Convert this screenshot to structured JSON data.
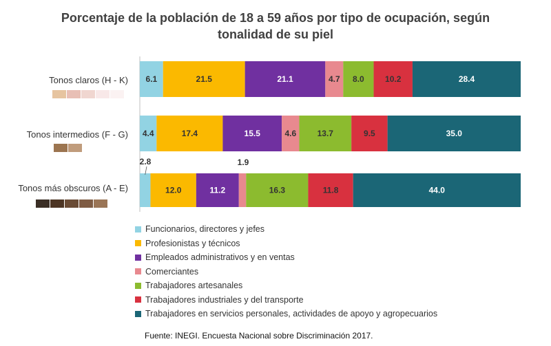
{
  "chart_data": {
    "type": "bar",
    "orientation": "horizontal",
    "stacked": true,
    "title": "Porcentaje de la población de 18 a 59 años por tipo de ocupación, según tonalidad de su piel",
    "title_lines": [
      "Porcentaje de la población de 18 a 59 años por tipo de ocupación, según",
      "tonalidad de su piel"
    ],
    "categories": [
      "Tonos claros (H - K)",
      "Tonos intermedios (F - G)",
      "Tonos más obscuros (A - E)"
    ],
    "series": [
      {
        "name": "Funcionarios, directores y jefes",
        "color": "#92d3e3",
        "values": [
          6.1,
          4.4,
          2.8
        ],
        "labels": [
          "6.1",
          "4.4",
          "2.8"
        ]
      },
      {
        "name": "Profesionistas y técnicos",
        "color": "#fbb900",
        "values": [
          21.5,
          17.4,
          12.0
        ],
        "labels": [
          "21.5",
          "17.4",
          "12.0"
        ]
      },
      {
        "name": "Empleados administrativos y en ventas",
        "color": "#7030a0",
        "values": [
          21.1,
          15.5,
          11.2
        ],
        "labels": [
          "21.1",
          "15.5",
          "11.2"
        ]
      },
      {
        "name": "Comerciantes",
        "color": "#e8898f",
        "values": [
          4.7,
          4.6,
          1.9
        ],
        "labels": [
          "4.7",
          "4.6",
          "1.9"
        ]
      },
      {
        "name": "Trabajadores artesanales",
        "color": "#8cbb2f",
        "values": [
          8.0,
          13.7,
          16.3
        ],
        "labels": [
          "8.0",
          "13.7",
          "16.3"
        ]
      },
      {
        "name": "Trabajadores industriales y del transporte",
        "color": "#d8313f",
        "values": [
          10.2,
          9.5,
          11.8
        ],
        "labels": [
          "10.2",
          "9.5",
          "11.8"
        ]
      },
      {
        "name": "Trabajadores en servicios personales, actividades de apoyo y agropecuarios",
        "color": "#1b6676",
        "values": [
          28.4,
          35.0,
          44.0
        ],
        "labels": [
          "28.4",
          "35.0",
          "44.0"
        ]
      }
    ],
    "xlim": [
      0,
      100
    ],
    "legend_position": "bottom",
    "skin_tone_swatches": [
      [
        "#e6c4a0",
        "#e8bfb5",
        "#f0d6d0",
        "#f8e8e8",
        "#fbf2f2"
      ],
      [
        "#9c7550",
        "#c09c7c"
      ],
      [
        "#3a2e25",
        "#4d3524",
        "#6a4b35",
        "#7f5c44",
        "#9a7556"
      ]
    ]
  },
  "source": "Fuente: INEGI. Encuesta Nacional sobre Discriminación 2017."
}
